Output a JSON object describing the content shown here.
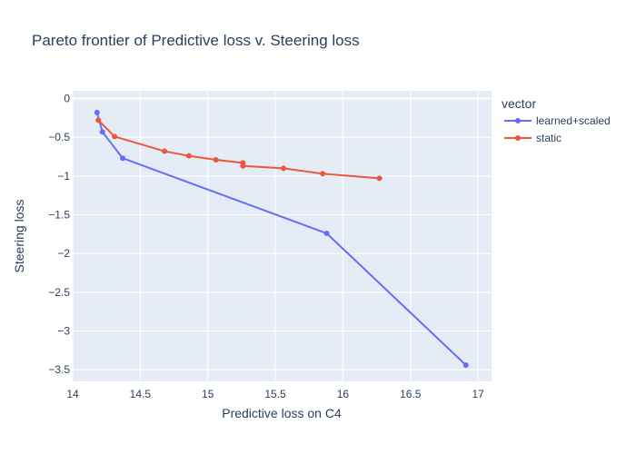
{
  "chart_data": {
    "type": "line",
    "title": "Pareto frontier of Predictive loss v. Steering loss",
    "xlabel": "Predictive loss on C4",
    "ylabel": "Steering loss",
    "xlim": [
      14,
      17.1
    ],
    "ylim": [
      -3.65,
      0.1
    ],
    "xticks": [
      14,
      14.5,
      15,
      15.5,
      16,
      16.5,
      17
    ],
    "xtick_labels": [
      "14",
      "14.5",
      "15",
      "15.5",
      "16",
      "16.5",
      "17"
    ],
    "yticks": [
      0,
      -0.5,
      -1,
      -1.5,
      -2,
      -2.5,
      -3,
      -3.5
    ],
    "ytick_labels": [
      "0",
      "−0.5",
      "−1",
      "−1.5",
      "−2",
      "−2.5",
      "−3",
      "−3.5"
    ],
    "grid": true,
    "legend": {
      "title": "vector",
      "position": "right"
    },
    "series": [
      {
        "name": "learned+scaled",
        "color": "#636efa",
        "points": [
          {
            "x": 14.18,
            "y": -0.18
          },
          {
            "x": 14.22,
            "y": -0.43
          },
          {
            "x": 14.37,
            "y": -0.77
          },
          {
            "x": 15.88,
            "y": -1.74
          },
          {
            "x": 16.91,
            "y": -3.44
          }
        ]
      },
      {
        "name": "static",
        "color": "#ef553b",
        "points": [
          {
            "x": 14.19,
            "y": -0.28
          },
          {
            "x": 14.31,
            "y": -0.49
          },
          {
            "x": 14.68,
            "y": -0.68
          },
          {
            "x": 14.86,
            "y": -0.74
          },
          {
            "x": 15.06,
            "y": -0.79
          },
          {
            "x": 15.26,
            "y": -0.83
          },
          {
            "x": 15.26,
            "y": -0.87
          },
          {
            "x": 15.56,
            "y": -0.9
          },
          {
            "x": 15.85,
            "y": -0.97
          },
          {
            "x": 16.27,
            "y": -1.03
          }
        ]
      }
    ]
  }
}
